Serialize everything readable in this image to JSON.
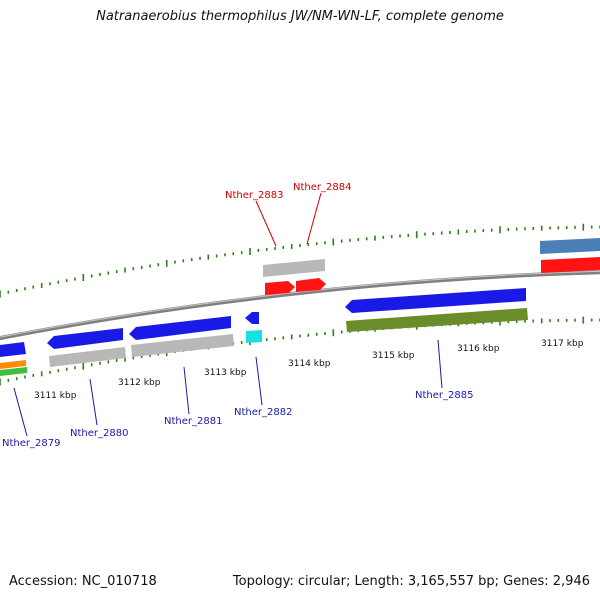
{
  "title": "Natranaerobius thermophilus JW/NM-WN-LF, complete genome",
  "accession": "Accession: NC_010718",
  "stats": "Topology: circular; Length: 3,165,557 bp; Genes: 2,946",
  "scale_labels": [
    "3111 kbp",
    "3112 kbp",
    "3113 kbp",
    "3114 kbp",
    "3115 kbp",
    "3116 kbp",
    "3117 kbp"
  ],
  "gene_labels": {
    "top": [
      "Nther_2883",
      "Nther_2884"
    ],
    "bottom": [
      "Nther_2879",
      "Nther_2880",
      "Nther_2881",
      "Nther_2882",
      "Nther_2885"
    ]
  },
  "colors": {
    "backbone": "#808080",
    "tick": "#2f7d1c",
    "gene_blue": "#1a1ae6",
    "gene_gray": "#b8b8b8",
    "gene_red": "#ff1414",
    "gene_cyan": "#16e0e0",
    "gene_olive": "#6b8c2a",
    "gene_steel": "#4a7fb8",
    "gene_orange": "#ff8c00",
    "gene_green": "#3fbf3f",
    "label_red": "#cc0000",
    "label_blue": "#1a1aaa"
  }
}
